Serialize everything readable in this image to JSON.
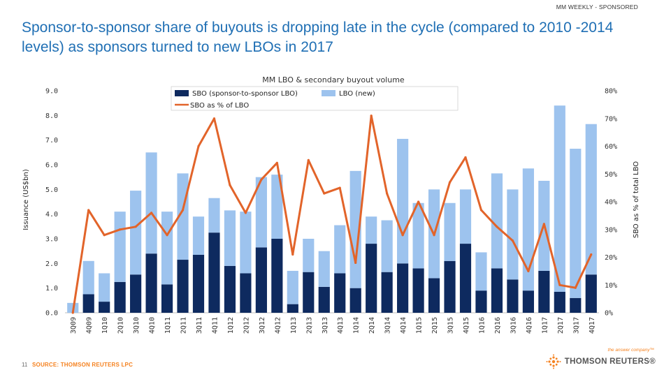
{
  "header": {
    "tag": "MM WEEKLY - SPONSORED"
  },
  "slide": {
    "title": "Sponsor-to-sponsor share of buyouts is dropping late in the cycle (compared to 2010 -2014 levels) as sponsors turned to new LBOs in 2017"
  },
  "footer": {
    "page_number": "11",
    "source": "SOURCE: THOMSON REUTERS LPC"
  },
  "logo": {
    "tagline": "the answer company™",
    "name": "THOMSON REUTERS®"
  },
  "colors": {
    "sbo": "#0e2a5f",
    "lbo": "#9dc3ee",
    "line": "#e2642a",
    "title": "#1f6fb4",
    "footer_accent": "#f58220"
  },
  "chart_data": {
    "type": "bar",
    "stacked": true,
    "title": "MM LBO & secondary buyout volume",
    "ylabel": "Issuance (US$bn)",
    "y2label": "SBO as % of total LBO",
    "ylim": [
      0,
      9
    ],
    "y2lim": [
      0,
      80
    ],
    "y_ticks": [
      "0.0",
      "1.0",
      "2.0",
      "3.0",
      "4.0",
      "5.0",
      "6.0",
      "7.0",
      "8.0",
      "9.0"
    ],
    "y2_ticks": [
      "0%",
      "10%",
      "20%",
      "30%",
      "40%",
      "50%",
      "60%",
      "70%",
      "80%"
    ],
    "categories": [
      "3Q09",
      "4Q09",
      "1Q10",
      "2Q10",
      "3Q10",
      "4Q10",
      "1Q11",
      "2Q11",
      "3Q11",
      "4Q11",
      "1Q12",
      "2Q12",
      "3Q12",
      "4Q12",
      "1Q13",
      "2Q13",
      "3Q13",
      "4Q13",
      "1Q14",
      "2Q14",
      "3Q14",
      "4Q14",
      "1Q15",
      "2Q15",
      "3Q15",
      "4Q15",
      "1Q16",
      "2Q16",
      "3Q16",
      "4Q16",
      "1Q17",
      "2Q17",
      "3Q17",
      "4Q17"
    ],
    "legend": [
      "SBO (sponsor-to-sponsor LBO)",
      "LBO (new)",
      "SBO as % of LBO"
    ],
    "series": [
      {
        "name": "SBO (sponsor-to-sponsor LBO)",
        "kind": "bar",
        "values": [
          0.0,
          0.75,
          0.45,
          1.25,
          1.55,
          2.4,
          1.15,
          2.15,
          2.35,
          3.25,
          1.9,
          1.6,
          2.65,
          3.0,
          0.35,
          1.65,
          1.05,
          1.6,
          1.0,
          2.8,
          1.65,
          2.0,
          1.8,
          1.4,
          2.1,
          2.8,
          0.9,
          1.8,
          1.35,
          0.9,
          1.7,
          0.85,
          0.6,
          1.55
        ]
      },
      {
        "name": "LBO (new)",
        "kind": "bar",
        "values": [
          0.4,
          1.35,
          1.15,
          2.85,
          3.4,
          4.1,
          2.95,
          3.5,
          1.55,
          1.4,
          2.25,
          2.5,
          2.85,
          2.6,
          1.35,
          1.35,
          1.45,
          1.95,
          4.75,
          1.1,
          2.1,
          5.05,
          2.65,
          3.6,
          2.35,
          2.2,
          1.55,
          3.85,
          3.65,
          4.95,
          3.65,
          7.55,
          6.05,
          6.1
        ]
      },
      {
        "name": "SBO as % of LBO",
        "kind": "line",
        "axis": "secondary",
        "values": [
          0,
          37,
          28,
          30,
          31,
          36,
          28,
          37,
          60,
          70,
          46,
          36,
          48,
          54,
          21,
          55,
          43,
          45,
          18,
          71,
          43,
          28,
          40,
          28,
          47,
          56,
          37,
          31,
          26,
          15,
          32,
          10,
          9,
          21
        ]
      }
    ]
  }
}
